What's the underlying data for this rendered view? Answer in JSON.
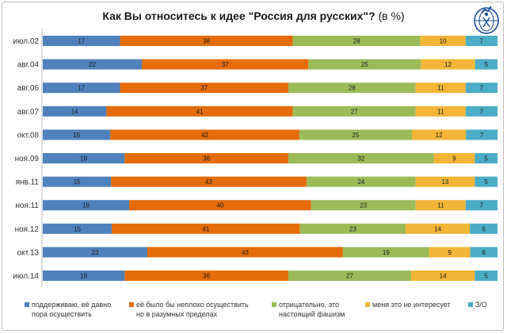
{
  "title_main": "Как Вы относитесь к идее \"Россия для русских\"?",
  "title_suffix": " (в %)",
  "logo_icon": "levada-center-logo-icon",
  "chart_data": {
    "type": "bar",
    "orientation": "horizontal",
    "stacked": "percent",
    "title": "Как Вы относитесь к идее \"Россия для русских\"? (в %)",
    "categories": [
      "июл.02",
      "авг.04",
      "авг.06",
      "авг.07",
      "окт.08",
      "ноя.09",
      "янв.11",
      "ноя.11",
      "ноя.12",
      "окт.13",
      "июл.14"
    ],
    "series": [
      {
        "name": "поддерживаю, её давно\nпора осуществить",
        "color": "#4f81bd",
        "values": [
          17,
          22,
          17,
          14,
          15,
          18,
          15,
          19,
          15,
          23,
          18
        ]
      },
      {
        "name": "её было бы неплохо осуществить\nно в разумных пределах",
        "color": "#e46c0a",
        "values": [
          38,
          37,
          37,
          41,
          42,
          36,
          43,
          40,
          41,
          43,
          36
        ]
      },
      {
        "name": "отрицательно, это\nнастоящий фашизм",
        "color": "#9bbb59",
        "values": [
          28,
          25,
          28,
          27,
          25,
          32,
          24,
          23,
          23,
          19,
          27
        ]
      },
      {
        "name": "меня это не интересует",
        "color": "#f3b537",
        "values": [
          10,
          12,
          11,
          11,
          12,
          9,
          13,
          11,
          14,
          9,
          14
        ]
      },
      {
        "name": "З/О",
        "color": "#4bacc6",
        "values": [
          7,
          5,
          7,
          7,
          7,
          5,
          5,
          7,
          6,
          6,
          5
        ]
      }
    ],
    "legend_position": "bottom",
    "grid": false
  }
}
